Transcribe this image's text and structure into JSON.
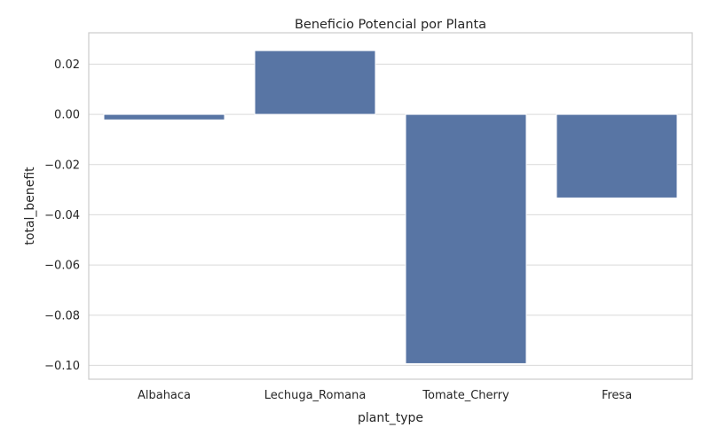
{
  "chart_data": {
    "type": "bar",
    "title": "Beneficio Potencial por Planta",
    "xlabel": "plant_type",
    "ylabel": "total_benefit",
    "categories": [
      "Albahaca",
      "Lechuga_Romana",
      "Tomate_Cherry",
      "Fresa"
    ],
    "values": [
      -0.0022,
      0.0254,
      -0.0993,
      -0.0333
    ],
    "ylim": [
      -0.1055,
      0.0325
    ],
    "yticks": [
      0.02,
      0.0,
      -0.02,
      -0.04,
      -0.06,
      -0.08,
      -0.1
    ],
    "ytick_labels": [
      "0.02",
      "0.00",
      "−0.02",
      "−0.04",
      "−0.06",
      "−0.08",
      "−0.10"
    ],
    "grid": true,
    "bar_color": "#5875a4",
    "grid_color": "#d9d9d9",
    "frame_color": "#cccccc"
  }
}
